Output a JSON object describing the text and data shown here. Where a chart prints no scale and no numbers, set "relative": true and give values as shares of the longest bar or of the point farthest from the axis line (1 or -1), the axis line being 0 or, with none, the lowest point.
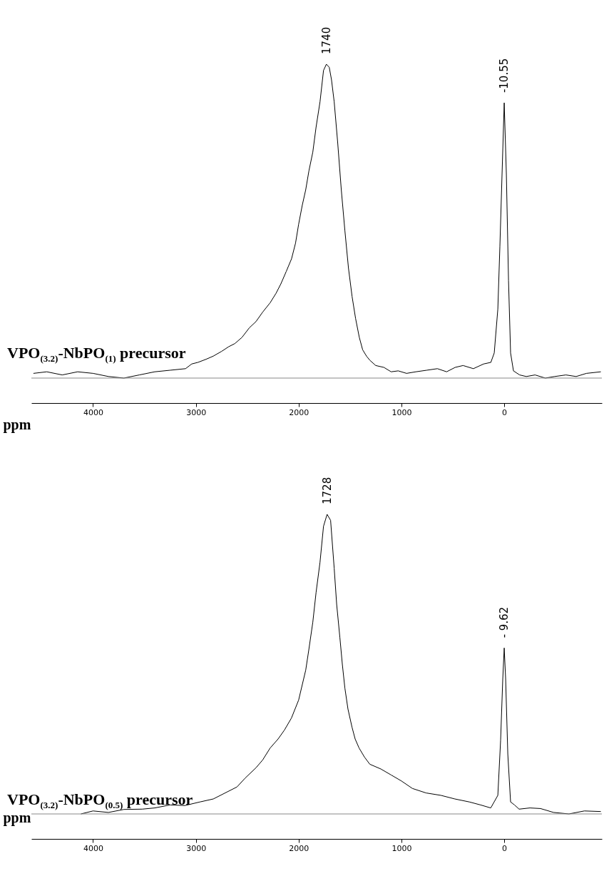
{
  "chart_data": [
    {
      "type": "line",
      "title": "VPO$_{(3.2)}$-NbPO$_{(1)}$ precursor",
      "xlabel": "ppm",
      "relative": true,
      "grid": false,
      "marker": "none",
      "xlim": [
        4600,
        -950
      ],
      "xticks": [
        4000,
        3000,
        2000,
        1000,
        0
      ],
      "ref_lines": [
        {
          "axis": "y",
          "value": 0,
          "color": "#888888"
        }
      ],
      "annotations": [
        {
          "text": "1740",
          "x": 1730,
          "y": 1
        },
        {
          "text": "-10.55",
          "x": 0,
          "y": 0.877
        }
      ],
      "series": [
        {
          "color": "#000000",
          "x": [
            4580,
            4450,
            4300,
            4150,
            4000,
            3850,
            3700,
            3550,
            3400,
            3250,
            3100,
            3040,
            2980,
            2900,
            2830,
            2750,
            2680,
            2620,
            2550,
            2480,
            2415,
            2350,
            2277,
            2220,
            2173,
            2120,
            2069,
            2030,
            2000,
            1965,
            1931,
            1900,
            1862,
            1830,
            1792,
            1758,
            1730,
            1702,
            1680,
            1654,
            1620,
            1585,
            1550,
            1515,
            1480,
            1446,
            1410,
            1377,
            1340,
            1308,
            1250,
            1170,
            1100,
            1031,
            950,
            860,
            754,
            650,
            560,
            478,
            400,
            300,
            200,
            130,
            97,
            62,
            42,
            21,
            0,
            -21,
            -42,
            -62,
            -90,
            -150,
            -215,
            -300,
            -400,
            -491,
            -600,
            -700,
            -800,
            -940
          ],
          "values": [
            0.015,
            0.02,
            0.01,
            0.02,
            0.015,
            0.005,
            0.0,
            0.01,
            0.02,
            0.025,
            0.03,
            0.045,
            0.05,
            0.06,
            0.07,
            0.085,
            0.1,
            0.11,
            0.13,
            0.16,
            0.18,
            0.21,
            0.24,
            0.27,
            0.3,
            0.34,
            0.38,
            0.43,
            0.49,
            0.55,
            0.6,
            0.66,
            0.72,
            0.8,
            0.88,
            0.98,
            1,
            0.99,
            0.95,
            0.88,
            0.75,
            0.6,
            0.47,
            0.35,
            0.26,
            0.19,
            0.13,
            0.09,
            0.07,
            0.057,
            0.04,
            0.034,
            0.02,
            0.023,
            0.015,
            0.02,
            0.025,
            0.03,
            0.02,
            0.034,
            0.04,
            0.03,
            0.045,
            0.05,
            0.08,
            0.22,
            0.42,
            0.65,
            0.877,
            0.65,
            0.31,
            0.08,
            0.023,
            0.01,
            0.005,
            0.01,
            0.0,
            0.005,
            0.01,
            0.005,
            0.015,
            0.02
          ]
        }
      ]
    },
    {
      "type": "line",
      "title": "VPO$_{(3.2)}$-NbPO$_{(0.5)}$ precursor",
      "xlabel": "ppm",
      "relative": true,
      "grid": false,
      "marker": "none",
      "xlim": [
        4600,
        -950
      ],
      "xticks": [
        4000,
        3000,
        2000,
        1000,
        0
      ],
      "ref_lines": [
        {
          "axis": "y",
          "value": 0,
          "color": "#888888"
        }
      ],
      "annotations": [
        {
          "text": "1728",
          "x": 1723,
          "y": 1
        },
        {
          "text": "- 9.62",
          "x": 0,
          "y": 0.554
        }
      ],
      "series": [
        {
          "color": "#000000",
          "x": [
            4118,
            4000,
            3850,
            3700,
            3522,
            3400,
            3250,
            3107,
            2960,
            2830,
            2692,
            2600,
            2519,
            2415,
            2350,
            2277,
            2200,
            2138,
            2070,
            2000,
            1931,
            1900,
            1862,
            1830,
            1792,
            1758,
            1723,
            1689,
            1654,
            1630,
            1599,
            1575,
            1550,
            1520,
            1481,
            1450,
            1412,
            1360,
            1308,
            1200,
            1100,
            1000,
            893,
            760,
            616,
            480,
            339,
            230,
            131,
            62,
            35,
            14,
            0,
            -14,
            -35,
            -62,
            -100,
            -145,
            -250,
            -353,
            -480,
            -630,
            -780,
            -940
          ],
          "values": [
            0.0,
            0.01,
            0.005,
            0.015,
            0.016,
            0.02,
            0.03,
            0.028,
            0.04,
            0.05,
            0.074,
            0.09,
            0.12,
            0.154,
            0.18,
            0.22,
            0.25,
            0.28,
            0.32,
            0.38,
            0.48,
            0.55,
            0.64,
            0.74,
            0.84,
            0.96,
            1,
            0.98,
            0.82,
            0.7,
            0.59,
            0.5,
            0.42,
            0.35,
            0.29,
            0.25,
            0.22,
            0.19,
            0.166,
            0.15,
            0.13,
            0.11,
            0.085,
            0.07,
            0.062,
            0.05,
            0.04,
            0.03,
            0.02,
            0.062,
            0.246,
            0.45,
            0.554,
            0.45,
            0.2,
            0.04,
            0.03,
            0.016,
            0.02,
            0.018,
            0.005,
            0.0,
            0.01,
            0.008
          ]
        }
      ]
    }
  ]
}
